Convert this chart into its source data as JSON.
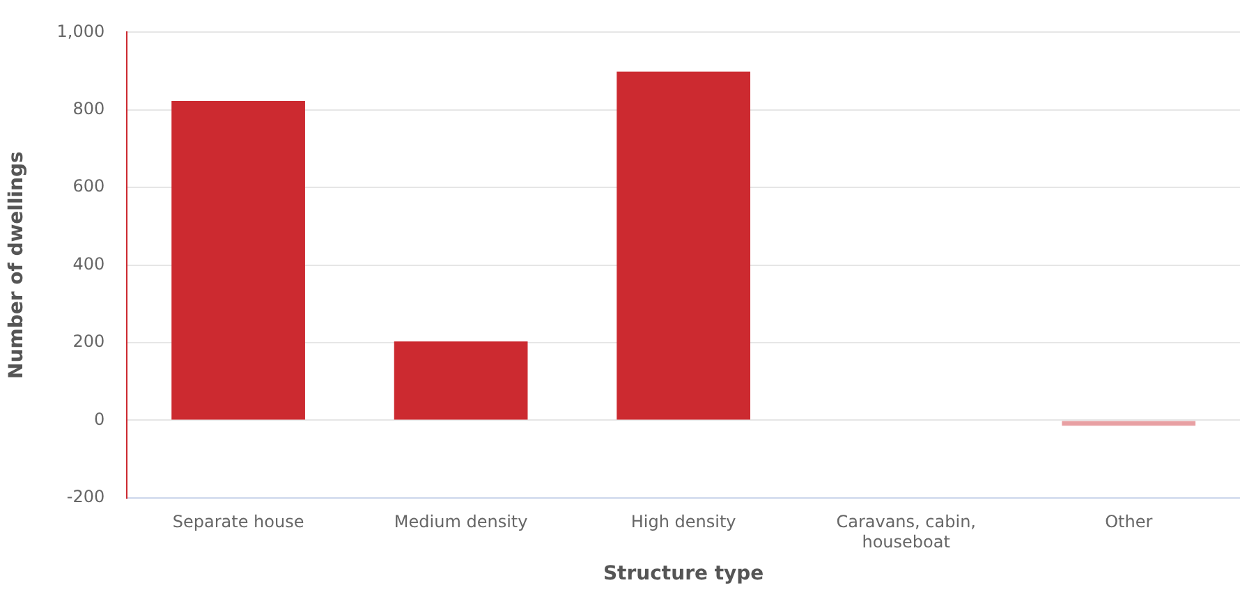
{
  "chart_data": {
    "type": "bar",
    "xlabel": "Structure type",
    "ylabel": "Number of dwellings",
    "categories": [
      "Separate house",
      "Medium density",
      "High density",
      "Caravans, cabin, houseboat",
      "Other"
    ],
    "values": [
      823,
      203,
      899,
      0,
      -14
    ],
    "colors": [
      "#cc2a30",
      "#cc2a30",
      "#cc2a30",
      "#cc2a30",
      "#e8a0a3"
    ],
    "ylim": [
      -200,
      1000
    ],
    "yticks": [
      -200,
      0,
      200,
      400,
      600,
      800,
      {
        "value": 1000,
        "label": "1,000"
      }
    ],
    "grid": "y",
    "legend": false
  }
}
